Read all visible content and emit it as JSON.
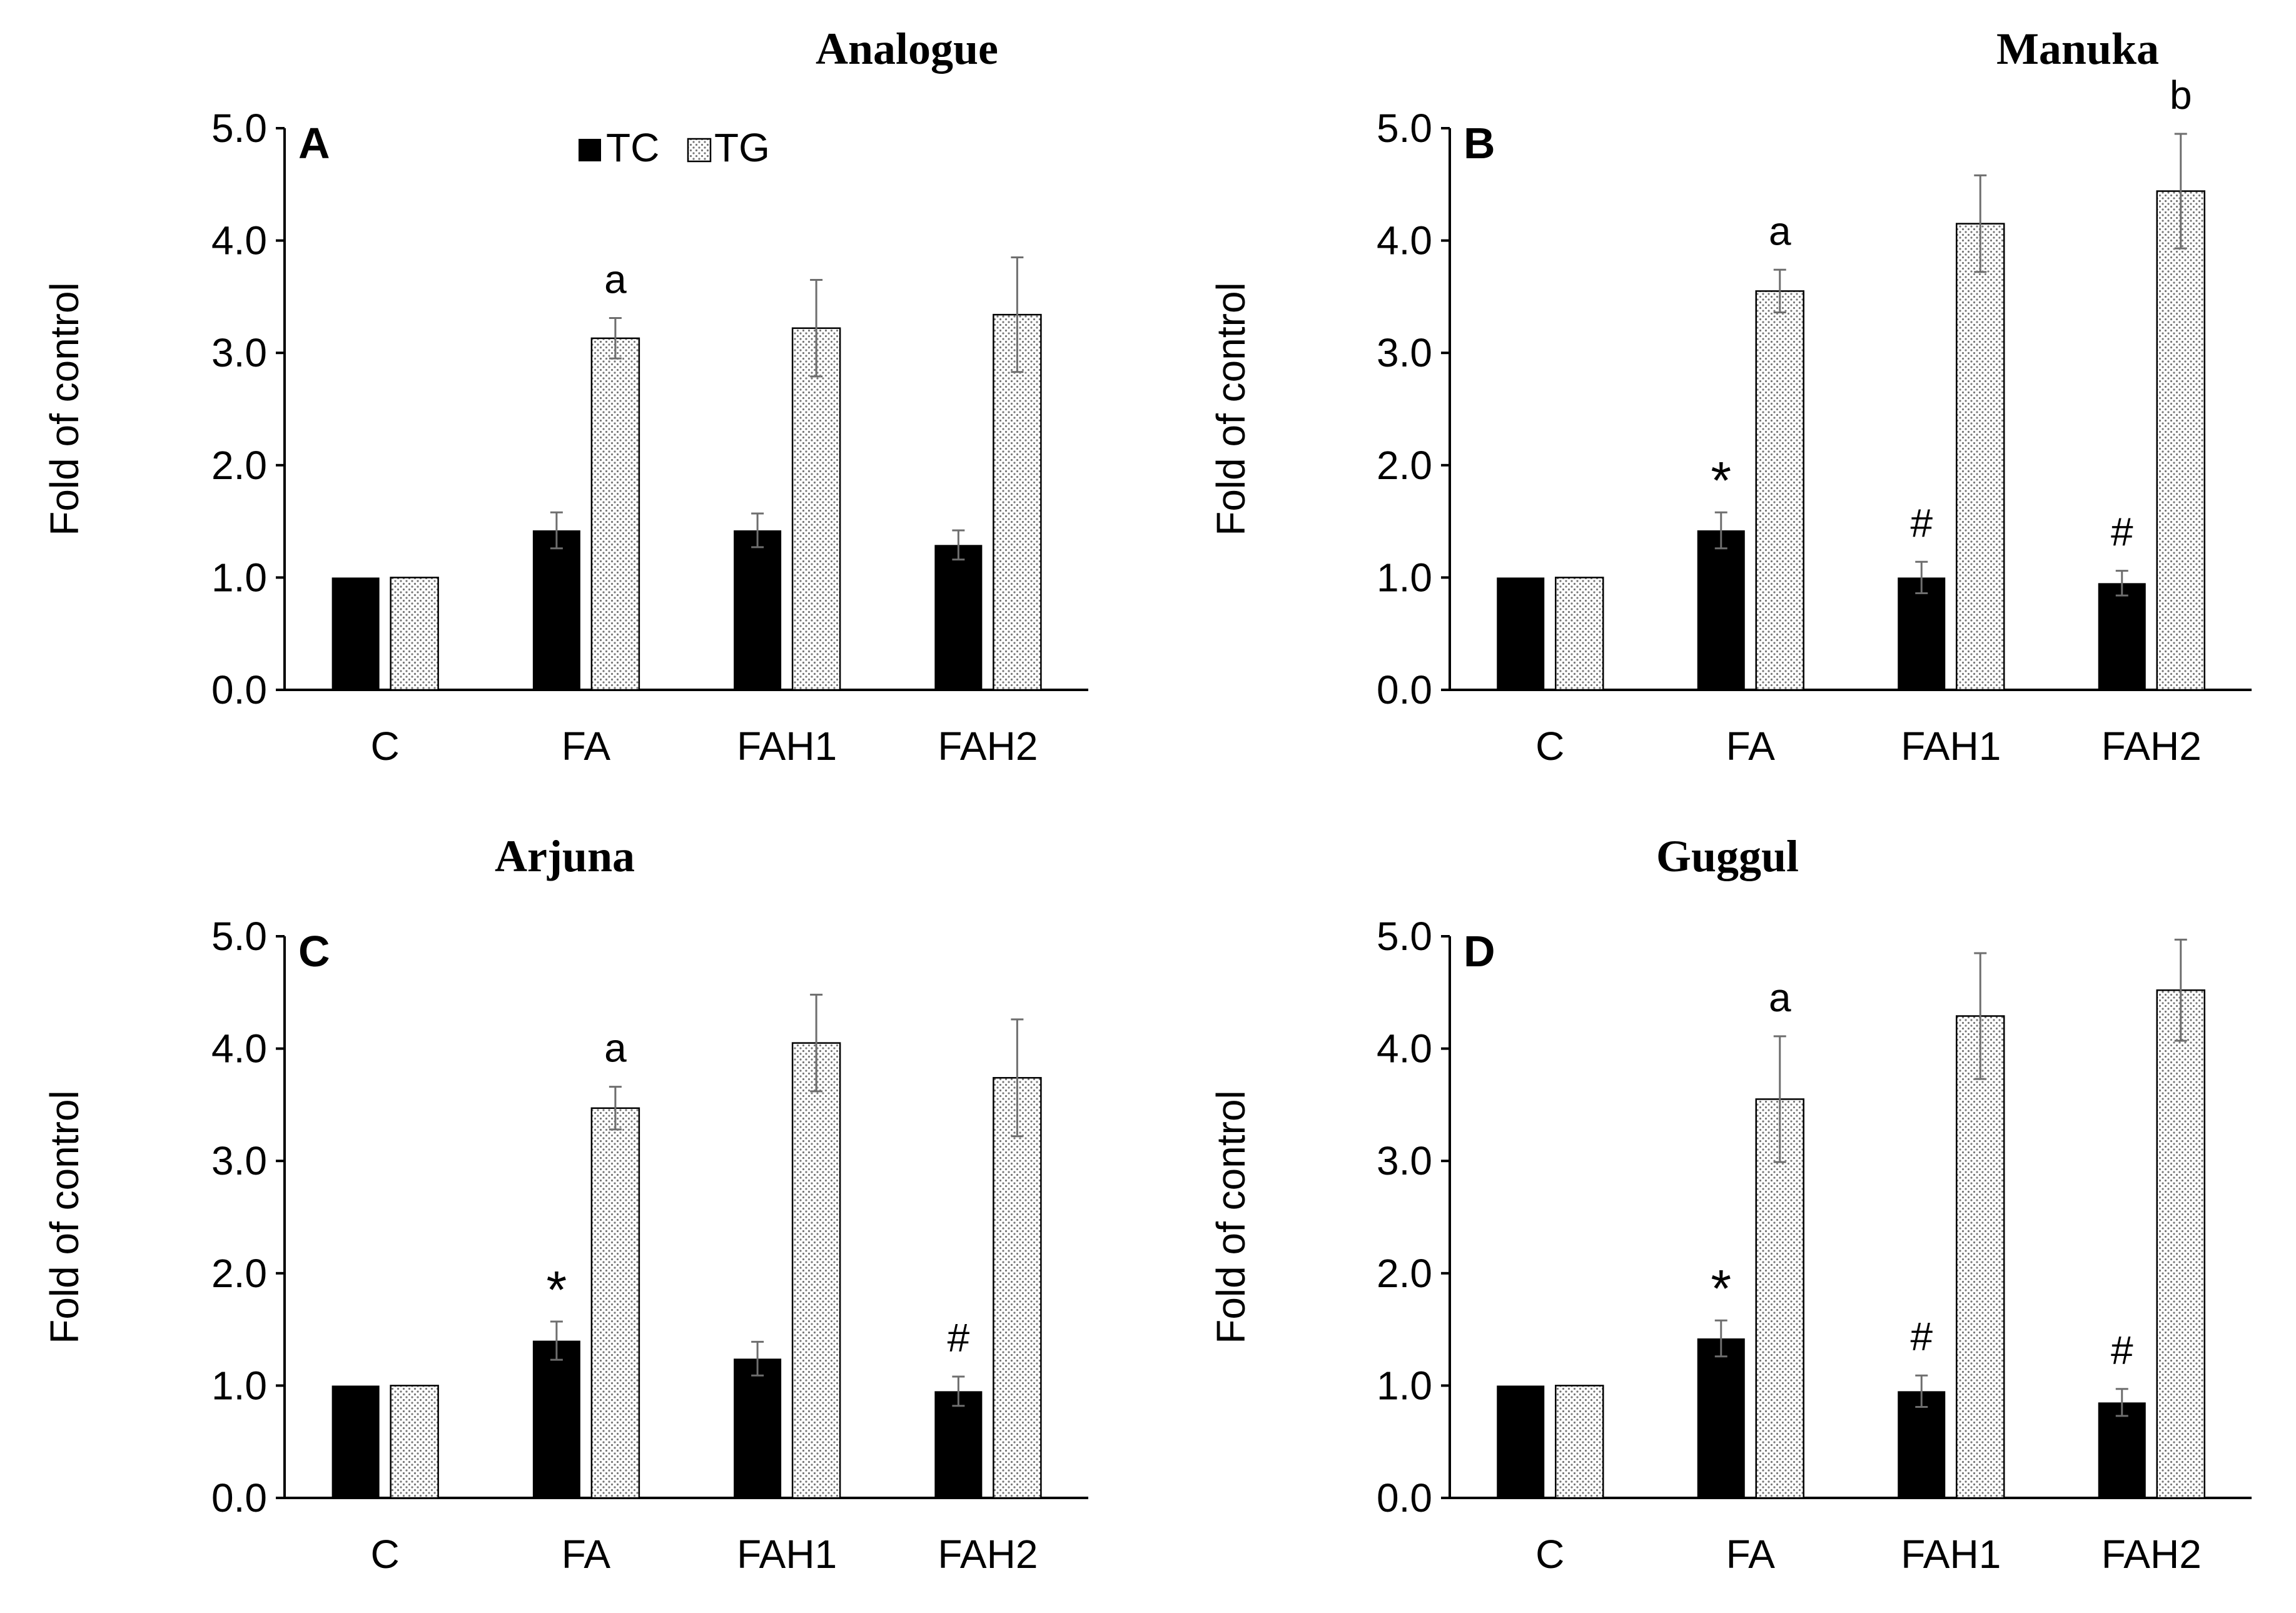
{
  "chart_data": [
    {
      "type": "bar",
      "panel": "A",
      "title": "Analogue",
      "ylabel": "Fold of control",
      "xlabel": "",
      "ylim": [
        0,
        5
      ],
      "yticks": [
        "0.0",
        "1.0",
        "2.0",
        "3.0",
        "4.0",
        "5.0"
      ],
      "categories": [
        "C",
        "FA",
        "FAH1",
        "FAH2"
      ],
      "legend": {
        "show": true,
        "placement": "top-left",
        "entries": [
          "TC",
          "TG"
        ]
      },
      "series": [
        {
          "name": "TC",
          "values": [
            1.0,
            1.42,
            1.42,
            1.29
          ],
          "errors": [
            0.01,
            0.16,
            0.15,
            0.13
          ],
          "annotations": [
            "",
            "",
            "",
            ""
          ]
        },
        {
          "name": "TG",
          "values": [
            1.0,
            3.13,
            3.22,
            3.34
          ],
          "errors": [
            0.01,
            0.18,
            0.43,
            0.51
          ],
          "annotations": [
            "",
            "a",
            "",
            ""
          ]
        }
      ]
    },
    {
      "type": "bar",
      "panel": "B",
      "title": "Manuka",
      "ylabel": "Fold of control",
      "xlabel": "",
      "ylim": [
        0,
        5
      ],
      "yticks": [
        "0.0",
        "1.0",
        "2.0",
        "3.0",
        "4.0",
        "5.0"
      ],
      "categories": [
        "C",
        "FA",
        "FAH1",
        "FAH2"
      ],
      "legend": {
        "show": false
      },
      "series": [
        {
          "name": "TC",
          "values": [
            1.0,
            1.42,
            1.0,
            0.95
          ],
          "errors": [
            0.01,
            0.16,
            0.14,
            0.11
          ],
          "annotations": [
            "",
            "*",
            "#",
            "#"
          ]
        },
        {
          "name": "TG",
          "values": [
            1.0,
            3.55,
            4.15,
            4.44
          ],
          "errors": [
            0.01,
            0.19,
            0.43,
            0.51
          ],
          "annotations": [
            "",
            "a",
            "",
            "b"
          ]
        }
      ]
    },
    {
      "type": "bar",
      "panel": "C",
      "title": "Arjuna",
      "ylabel": "Fold of control",
      "xlabel": "",
      "ylim": [
        0,
        5
      ],
      "yticks": [
        "0.0",
        "1.0",
        "2.0",
        "3.0",
        "4.0",
        "5.0"
      ],
      "categories": [
        "C",
        "FA",
        "FAH1",
        "FAH2"
      ],
      "legend": {
        "show": false
      },
      "series": [
        {
          "name": "TC",
          "values": [
            1.0,
            1.4,
            1.24,
            0.95
          ],
          "errors": [
            0.01,
            0.17,
            0.15,
            0.13
          ],
          "annotations": [
            "",
            "*",
            "",
            "#"
          ]
        },
        {
          "name": "TG",
          "values": [
            1.0,
            3.47,
            4.05,
            3.74
          ],
          "errors": [
            0.01,
            0.19,
            0.43,
            0.52
          ],
          "annotations": [
            "",
            "a",
            "",
            ""
          ]
        }
      ]
    },
    {
      "type": "bar",
      "panel": "D",
      "title": "Guggul",
      "ylabel": "Fold of control",
      "xlabel": "",
      "ylim": [
        0,
        5
      ],
      "yticks": [
        "0.0",
        "1.0",
        "2.0",
        "3.0",
        "4.0",
        "5.0"
      ],
      "categories": [
        "C",
        "FA",
        "FAH1",
        "FAH2"
      ],
      "legend": {
        "show": false
      },
      "series": [
        {
          "name": "TC",
          "values": [
            1.0,
            1.42,
            0.95,
            0.85
          ],
          "errors": [
            0.01,
            0.16,
            0.14,
            0.12
          ],
          "annotations": [
            "",
            "*",
            "#",
            "#"
          ]
        },
        {
          "name": "TG",
          "values": [
            1.0,
            3.55,
            4.29,
            4.52
          ],
          "errors": [
            0.01,
            0.56,
            0.56,
            0.45
          ],
          "annotations": [
            "",
            "a",
            "",
            ""
          ]
        }
      ]
    }
  ],
  "colors": {
    "tc_fill": "#000000",
    "tg_fill": "#ffffff",
    "tg_dots": "#777777",
    "axis": "#000000",
    "errorbar": "#6e6e6e"
  }
}
